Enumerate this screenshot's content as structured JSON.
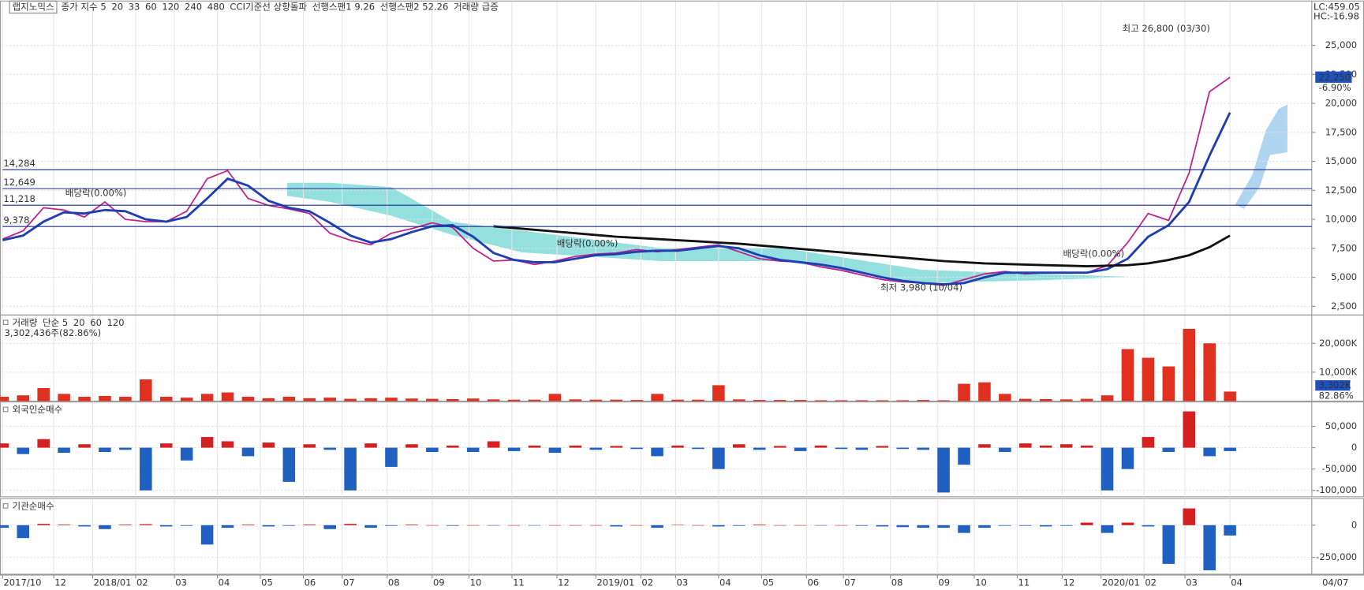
{
  "chart_data": [
    {
      "type": "line",
      "title": "랩지노믹스",
      "x": [
        0,
        1,
        2,
        3,
        4,
        5,
        6,
        7,
        8,
        9,
        10,
        11,
        12,
        13,
        14,
        15,
        16,
        17,
        18,
        19,
        20,
        21,
        22,
        23,
        24,
        25,
        26,
        27,
        28,
        29,
        30,
        31,
        32,
        33,
        34,
        35,
        36,
        37,
        38,
        39,
        40,
        41,
        42,
        43,
        44,
        45,
        46,
        47,
        48,
        49,
        50,
        51,
        52,
        53,
        54,
        55,
        56,
        57,
        58,
        59,
        60
      ],
      "xlim": [
        0,
        64
      ],
      "xticks": [
        {
          "value": 0,
          "label": "2017/10"
        },
        {
          "value": 2.5,
          "label": "12"
        },
        {
          "value": 4.4,
          "label": "2018/01"
        },
        {
          "value": 6.5,
          "label": "02"
        },
        {
          "value": 8.4,
          "label": "03"
        },
        {
          "value": 10.5,
          "label": "04"
        },
        {
          "value": 12.6,
          "label": "05"
        },
        {
          "value": 14.7,
          "label": "06"
        },
        {
          "value": 16.6,
          "label": "07"
        },
        {
          "value": 18.8,
          "label": "08"
        },
        {
          "value": 21,
          "label": "09"
        },
        {
          "value": 22.8,
          "label": "10"
        },
        {
          "value": 24.9,
          "label": "11"
        },
        {
          "value": 27.1,
          "label": "12"
        },
        {
          "value": 29,
          "label": "2019/01"
        },
        {
          "value": 31.2,
          "label": "02"
        },
        {
          "value": 32.9,
          "label": "03"
        },
        {
          "value": 35,
          "label": "04"
        },
        {
          "value": 37.1,
          "label": "05"
        },
        {
          "value": 39.3,
          "label": "06"
        },
        {
          "value": 41.1,
          "label": "07"
        },
        {
          "value": 43.4,
          "label": "08"
        },
        {
          "value": 45.7,
          "label": "09"
        },
        {
          "value": 47.5,
          "label": "10"
        },
        {
          "value": 49.6,
          "label": "11"
        },
        {
          "value": 51.8,
          "label": "12"
        },
        {
          "value": 53.7,
          "label": "2020/01"
        },
        {
          "value": 55.8,
          "label": "02"
        },
        {
          "value": 57.8,
          "label": "03"
        },
        {
          "value": 60,
          "label": "04"
        }
      ],
      "x_end_label": "04/07",
      "ylim": [
        1750,
        28750
      ],
      "yticks": [
        {
          "value": 2500,
          "label": "2,500"
        },
        {
          "value": 5000,
          "label": "5,000"
        },
        {
          "value": 7500,
          "label": "7,500"
        },
        {
          "value": 10000,
          "label": "10,000"
        },
        {
          "value": 12500,
          "label": "12,500"
        },
        {
          "value": 15000,
          "label": "15,000"
        },
        {
          "value": 17500,
          "label": "17,500"
        },
        {
          "value": 20000,
          "label": "20,000"
        },
        {
          "value": 22500,
          "label": "22,500"
        },
        {
          "value": 25000,
          "label": "25,000"
        }
      ],
      "series": [
        {
          "name": "종가 지수 5",
          "color": "#c0208a",
          "values": [
            8300,
            9000,
            11000,
            10800,
            10200,
            11500,
            10000,
            9800,
            9800,
            10700,
            13500,
            14200,
            11800,
            11200,
            10900,
            10500,
            8800,
            8200,
            7800,
            8800,
            9200,
            9700,
            9300,
            7500,
            6400,
            6500,
            6100,
            6400,
            6800,
            7000,
            7100,
            7400,
            7200,
            7400,
            7600,
            7800,
            7200,
            6600,
            6400,
            6300,
            5900,
            5600,
            5200,
            4800,
            4600,
            4500,
            4300,
            4800,
            5300,
            5500,
            5300,
            5400,
            5400,
            5400,
            6000,
            8000,
            10500,
            9900,
            14000,
            21000,
            22250
          ]
        },
        {
          "name": "20",
          "color": "#1f3fb0",
          "values": [
            8200,
            8600,
            9800,
            10600,
            10500,
            10800,
            10700,
            10000,
            9800,
            10200,
            11800,
            13500,
            12900,
            11600,
            11000,
            10700,
            9700,
            8600,
            8000,
            8300,
            8900,
            9400,
            9500,
            8500,
            7100,
            6500,
            6300,
            6300,
            6600,
            6900,
            7000,
            7200,
            7300,
            7300,
            7500,
            7700,
            7500,
            6900,
            6500,
            6300,
            6100,
            5800,
            5400,
            5000,
            4700,
            4500,
            4400,
            4500,
            5000,
            5400,
            5400,
            5400,
            5400,
            5400,
            5700,
            6600,
            8500,
            9500,
            11500,
            15500,
            19200
          ]
        },
        {
          "name": "240",
          "color": "#111111",
          "values": [
            null,
            null,
            null,
            null,
            null,
            null,
            null,
            null,
            null,
            null,
            null,
            null,
            null,
            null,
            null,
            null,
            null,
            null,
            null,
            null,
            null,
            null,
            null,
            null,
            9400,
            9250,
            9100,
            8950,
            8800,
            8650,
            8500,
            8400,
            8300,
            8200,
            8100,
            8000,
            7900,
            7750,
            7600,
            7450,
            7300,
            7150,
            7000,
            6850,
            6700,
            6550,
            6400,
            6300,
            6200,
            6150,
            6100,
            6050,
            6000,
            5950,
            6000,
            6050,
            6200,
            6500,
            6900,
            7600,
            8600
          ]
        }
      ],
      "other_lines": [
        {
          "name": "33",
          "color": "#e0a020"
        },
        {
          "name": "60",
          "color": "#20a8a0"
        },
        {
          "name": "120",
          "color": "#2a8a2a"
        },
        {
          "name": "480",
          "color": "#999999"
        }
      ],
      "indicators": [
        {
          "name": "CCI기준선 상향돌파",
          "color": "#222222"
        },
        {
          "name": "선행스팬1 9.26",
          "color": "#6cc6e8"
        },
        {
          "name": "선행스팬2 52.26",
          "color": "#20b0a0"
        },
        {
          "name": "거래량 급증",
          "color": "#d02020"
        }
      ],
      "hlines": [
        {
          "value": 14284,
          "label": "14,284"
        },
        {
          "value": 12649,
          "label": "12,649"
        },
        {
          "value": 11218,
          "label": "11,218"
        },
        {
          "value": 9378,
          "label": "9,378"
        }
      ],
      "annotations": [
        "최고 26,800 (03/30)",
        "최저 3,980 (10/04)",
        "배당락(0.00%)",
        "배당락(0.00%)",
        "배당락(0.00%)"
      ],
      "corner_labels": [
        "LC:459.05",
        "HC:-16.98"
      ],
      "last_label": "22,250",
      "last_change": "-6.90%"
    },
    {
      "type": "bar",
      "title": "거래량",
      "color": "#e03020",
      "ma_names": [
        {
          "name": "단순 5",
          "color": "#c0208a"
        },
        {
          "name": "20",
          "color": "#e0a020"
        },
        {
          "name": "60",
          "color": "#2a8a2a"
        },
        {
          "name": "120",
          "color": "#888888"
        }
      ],
      "subtitle": "3,302,436주(82.86%)",
      "ylim": [
        0,
        29500
      ],
      "yticks": [
        {
          "value": 10000,
          "label": "10,000K"
        },
        {
          "value": 20000,
          "label": "20,000K"
        }
      ],
      "values": [
        1500,
        2000,
        4500,
        2500,
        1500,
        1800,
        1500,
        7500,
        1500,
        1200,
        2500,
        3000,
        1500,
        1000,
        1500,
        1000,
        1200,
        800,
        1000,
        1200,
        900,
        800,
        700,
        900,
        600,
        500,
        500,
        2500,
        600,
        500,
        500,
        400,
        2500,
        500,
        500,
        5500,
        600,
        400,
        400,
        400,
        300,
        300,
        300,
        300,
        300,
        400,
        300,
        6000,
        6500,
        2500,
        800,
        700,
        600,
        800,
        2000,
        18000,
        15000,
        12000,
        25000,
        20000,
        3302
      ],
      "last_label": "3,302K",
      "last_ratio": "82.86%"
    },
    {
      "type": "bar",
      "title": "외국인순매수",
      "color": "#d42020",
      "neg_color": "#2060c0",
      "ylim": [
        -115000,
        105000
      ],
      "yticks": [
        {
          "value": 50000,
          "label": "50,000"
        },
        0,
        {
          "value": -50000,
          "label": "-50,000"
        },
        {
          "value": -100000,
          "label": "-100,000"
        }
      ],
      "values": [
        10000,
        -15000,
        20000,
        -12000,
        8000,
        -10000,
        -5000,
        -100000,
        10000,
        -30000,
        25000,
        15000,
        -20000,
        12000,
        -80000,
        8000,
        -5000,
        -100000,
        10000,
        -45000,
        8000,
        -10000,
        5000,
        -10000,
        15000,
        -8000,
        5000,
        -12000,
        5000,
        -5000,
        4000,
        -3000,
        -20000,
        5000,
        -3000,
        -50000,
        8000,
        -5000,
        4000,
        -8000,
        5000,
        -3000,
        -5000,
        4000,
        -3000,
        -5000,
        -105000,
        -40000,
        8000,
        -10000,
        10000,
        5000,
        8000,
        5000,
        -100000,
        -50000,
        25000,
        -10000,
        85000,
        -20000,
        -8000
      ]
    },
    {
      "type": "bar",
      "title": "기관순매수",
      "color": "#d42020",
      "neg_color": "#2060c0",
      "ylim": [
        -380000,
        200000
      ],
      "yticks": [
        0,
        {
          "value": -250000,
          "label": "-250,000"
        }
      ],
      "values": [
        -20000,
        -100000,
        10000,
        5000,
        -10000,
        -30000,
        5000,
        8000,
        -10000,
        -5000,
        -150000,
        -20000,
        5000,
        -10000,
        -5000,
        5000,
        -30000,
        10000,
        -20000,
        -5000,
        5000,
        0,
        -5000,
        0,
        -3000,
        0,
        -2000,
        0,
        0,
        0,
        -10000,
        0,
        -20000,
        3000,
        0,
        -10000,
        -5000,
        5000,
        0,
        0,
        -3000,
        0,
        -5000,
        -10000,
        -15000,
        -20000,
        -20000,
        -60000,
        -20000,
        -5000,
        -5000,
        -10000,
        -5000,
        20000,
        -60000,
        20000,
        -10000,
        -300000,
        130000,
        -350000,
        -80000
      ]
    }
  ]
}
